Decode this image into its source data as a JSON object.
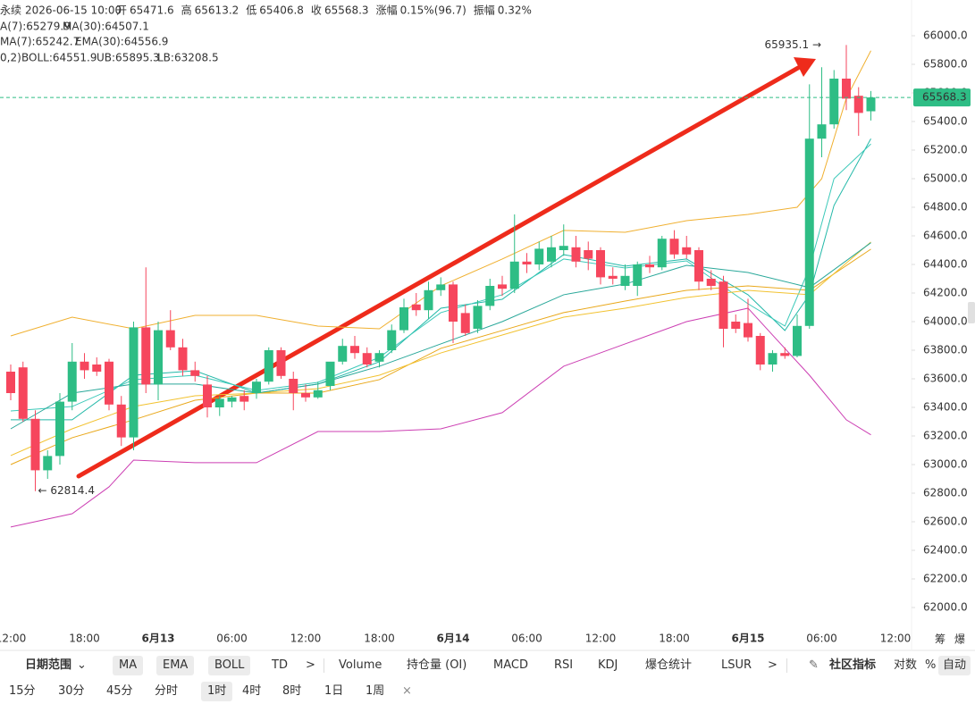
{
  "header": {
    "symbol": "永续",
    "time": "2026-06-15 10:00",
    "fields": [
      {
        "label": "开",
        "value": "65471.6"
      },
      {
        "label": "高",
        "value": "65613.2"
      },
      {
        "label": "低",
        "value": "65406.8"
      },
      {
        "label": "收",
        "value": "65568.3"
      },
      {
        "label": "涨幅",
        "value": "0.15%(96.7)"
      },
      {
        "label": "振幅",
        "value": "0.32%"
      }
    ]
  },
  "boll_params": "0,2)",
  "chart_data": {
    "type": "candlestick",
    "ylim": [
      61875,
      66250
    ],
    "yticks": [
      {
        "value": 62000,
        "label": "62000.0"
      },
      {
        "value": 62200,
        "label": "62200.0"
      },
      {
        "value": 62400,
        "label": "62400.0"
      },
      {
        "value": 62600,
        "label": "62600.0"
      },
      {
        "value": 62800,
        "label": "62800.0"
      },
      {
        "value": 63000,
        "label": "63000.0"
      },
      {
        "value": 63200,
        "label": "63200.0"
      },
      {
        "value": 63400,
        "label": "63400.0"
      },
      {
        "value": 63600,
        "label": "63600.0"
      },
      {
        "value": 63800,
        "label": "63800.0"
      },
      {
        "value": 64000,
        "label": "64000.0"
      },
      {
        "value": 64200,
        "label": "64200.0"
      },
      {
        "value": 64400,
        "label": "64400.0"
      },
      {
        "value": 64600,
        "label": "64600.0"
      },
      {
        "value": 64800,
        "label": "64800.0"
      },
      {
        "value": 65000,
        "label": "65000.0"
      },
      {
        "value": 65200,
        "label": "65200.0"
      },
      {
        "value": 65400,
        "label": "65400.0"
      },
      {
        "value": 65600,
        "label": "65600.0"
      },
      {
        "value": 65800,
        "label": "65800.0"
      },
      {
        "value": 66000,
        "label": "66000.0"
      }
    ],
    "xlabels": [
      {
        "index": 0,
        "label": "12:00"
      },
      {
        "index": 6,
        "label": "18:00"
      },
      {
        "index": 12,
        "label": "6月13"
      },
      {
        "index": 18,
        "label": "06:00"
      },
      {
        "index": 24,
        "label": "12:00"
      },
      {
        "index": 30,
        "label": "18:00"
      },
      {
        "index": 36,
        "label": "6月14"
      },
      {
        "index": 42,
        "label": "06:00"
      },
      {
        "index": 48,
        "label": "12:00"
      },
      {
        "index": 54,
        "label": "18:00"
      },
      {
        "index": 60,
        "label": "6月15"
      },
      {
        "index": 66,
        "label": "06:00"
      },
      {
        "index": 72,
        "label": "12:00"
      }
    ],
    "up_color": "#2ebd85",
    "down_color": "#f6465d",
    "open": [
      63650,
      63680,
      63320,
      62960,
      63060,
      63440,
      63720,
      63700,
      63720,
      63420,
      63190,
      63960,
      63560,
      63940,
      63820,
      63660,
      63560,
      63400,
      63440,
      63480,
      63500,
      63580,
      63800,
      63600,
      63500,
      63470,
      63550,
      63720,
      63830,
      63780,
      63720,
      63800,
      63940,
      64120,
      64080,
      64220,
      64260,
      64060,
      63950,
      64110,
      64260,
      64230,
      64420,
      64400,
      64420,
      64500,
      64520,
      64500,
      64500,
      64320,
      64250,
      64250,
      64400,
      64380,
      64580,
      64520,
      64500,
      64300,
      64280,
      64000,
      63990,
      63900,
      63700,
      63780,
      63760,
      63970,
      65280,
      65380,
      65700,
      65580,
      65471.6
    ],
    "high": [
      63700,
      63720,
      63380,
      63100,
      63500,
      63850,
      63780,
      63750,
      63740,
      63480,
      64000,
      64380,
      64000,
      64080,
      63880,
      63720,
      63620,
      63480,
      63480,
      63520,
      63600,
      63820,
      63820,
      63650,
      63560,
      63580,
      63700,
      63880,
      63900,
      63820,
      63800,
      63980,
      64160,
      64200,
      64280,
      64310,
      64280,
      64120,
      64150,
      64300,
      64320,
      64750,
      64480,
      64560,
      64600,
      64680,
      64600,
      64560,
      64520,
      64380,
      64400,
      64420,
      64460,
      64600,
      64640,
      64600,
      64520,
      64360,
      64320,
      64050,
      64160,
      63920,
      63800,
      63820,
      64050,
      65660,
      65780,
      65760,
      65935.1,
      65640,
      65613.2
    ],
    "low": [
      63450,
      63300,
      62814.4,
      62900,
      63000,
      63380,
      63600,
      63620,
      63380,
      63130,
      63100,
      63500,
      63450,
      63800,
      63620,
      63580,
      63330,
      63340,
      63400,
      63380,
      63460,
      63560,
      63600,
      63380,
      63440,
      63460,
      63520,
      63700,
      63740,
      63680,
      63680,
      63780,
      63920,
      64040,
      64020,
      64180,
      63850,
      63900,
      63920,
      64080,
      64180,
      64200,
      64340,
      64360,
      64380,
      64460,
      64380,
      64360,
      64260,
      64260,
      64220,
      64180,
      64340,
      64360,
      64440,
      64440,
      64220,
      64220,
      63820,
      63920,
      63860,
      63660,
      63650,
      63740,
      63750,
      63950,
      65150,
      65350,
      65480,
      65300,
      65406.8
    ],
    "close": [
      63500,
      63320,
      62960,
      63060,
      63440,
      63720,
      63660,
      63650,
      63420,
      63190,
      63960,
      63560,
      63940,
      63820,
      63660,
      63620,
      63400,
      63460,
      63470,
      63440,
      63580,
      63800,
      63620,
      63500,
      63470,
      63520,
      63720,
      63830,
      63780,
      63700,
      63780,
      63940,
      64100,
      64080,
      64220,
      64260,
      64000,
      63920,
      64110,
      64250,
      64230,
      64420,
      64400,
      64510,
      64520,
      64530,
      64420,
      64440,
      64310,
      64300,
      64320,
      64400,
      64380,
      64580,
      64470,
      64470,
      64280,
      64250,
      63950,
      63950,
      63890,
      63700,
      63780,
      63760,
      63970,
      65280,
      65380,
      65700,
      65560,
      65460,
      65568.3
    ],
    "current_price": {
      "value": 65568.3,
      "label": "65568.3"
    },
    "extremes": {
      "index": [
        68,
        2
      ],
      "values": [
        65935.1,
        62814.4
      ],
      "value_labels": [
        "65935.1 →",
        "← 62814.4"
      ]
    },
    "lines": [
      {
        "label": "A(7):65279.9",
        "color": "#22b8a8",
        "x": [
          0,
          5,
          10,
          15,
          20,
          25,
          30,
          35,
          40,
          45,
          50,
          55,
          60,
          63,
          65,
          67,
          70
        ],
        "values": [
          63313,
          63313,
          63625,
          63656,
          63500,
          63563,
          63719,
          64094,
          64156,
          64469,
          64388,
          64438,
          64188,
          63938,
          64188,
          64813,
          65279.9
        ]
      },
      {
        "label": "MA(30):64507.1",
        "color": "#e9a81b",
        "x": [
          0,
          5,
          10,
          15,
          20,
          25,
          30,
          35,
          40,
          45,
          50,
          55,
          60,
          65,
          70
        ],
        "values": [
          63000,
          63188,
          63313,
          63450,
          63500,
          63500,
          63594,
          63813,
          63938,
          64063,
          64144,
          64219,
          64250,
          64219,
          64507.1
        ]
      },
      {
        "label": "MA(7):65242.7",
        "color": "#3cc9b9",
        "x": [
          0,
          5,
          10,
          15,
          20,
          25,
          30,
          35,
          40,
          45,
          50,
          55,
          60,
          63,
          65,
          67,
          70
        ],
        "values": [
          63375,
          63406,
          63594,
          63625,
          63519,
          63575,
          63750,
          64063,
          64188,
          64438,
          64375,
          64425,
          64125,
          63969,
          64375,
          65000,
          65242.7
        ]
      },
      {
        "label": "EMA(30):64556.9",
        "color": "#f2c230",
        "x": [
          0,
          5,
          10,
          15,
          20,
          25,
          30,
          35,
          40,
          45,
          50,
          55,
          60,
          65,
          70
        ],
        "values": [
          63063,
          63250,
          63406,
          63481,
          63500,
          63531,
          63625,
          63781,
          63906,
          64031,
          64094,
          64169,
          64219,
          64188,
          64556.9
        ]
      },
      {
        "label": "BOLL:64551.9",
        "color": "#2aa89a",
        "x": [
          0,
          5,
          10,
          15,
          20,
          25,
          30,
          35,
          40,
          45,
          50,
          55,
          60,
          65,
          70
        ],
        "values": [
          63250,
          63500,
          63563,
          63563,
          63500,
          63563,
          63688,
          63844,
          64000,
          64188,
          64263,
          64394,
          64344,
          64238,
          64551.9
        ]
      },
      {
        "label": "UB:65895.3",
        "color": "#f0b030",
        "x": [
          0,
          5,
          10,
          15,
          20,
          25,
          30,
          35,
          40,
          45,
          50,
          55,
          60,
          64,
          66,
          68,
          70
        ],
        "values": [
          63900,
          64031,
          63950,
          64044,
          64044,
          63969,
          63950,
          64250,
          64438,
          64638,
          64625,
          64706,
          64750,
          64800,
          65000,
          65563,
          65895.3
        ]
      },
      {
        "label": "LB:63208.5",
        "color": "#cc3fb3",
        "x": [
          0,
          5,
          8,
          10,
          15,
          20,
          25,
          30,
          35,
          40,
          45,
          50,
          55,
          60,
          62,
          65,
          68,
          70
        ],
        "values": [
          62563,
          62656,
          62844,
          63031,
          63013,
          63013,
          63231,
          63231,
          63250,
          63363,
          63688,
          63844,
          64000,
          64094,
          63906,
          63625,
          63313,
          63208.5
        ]
      }
    ]
  },
  "axis_corner": [
    "筹",
    "爆"
  ],
  "toolbar": {
    "date_range": "日期范围",
    "main_indicators": [
      "MA",
      "EMA",
      "BOLL",
      "TD"
    ],
    "more1": ">",
    "sub_indicators": [
      "Volume",
      "持仓量 (OI)",
      "MACD",
      "RSI",
      "KDJ",
      "爆仓统计",
      "LSUR"
    ],
    "more2": ">",
    "community": "社区指标",
    "options": [
      "对数",
      "%",
      "自动"
    ]
  },
  "intervals": {
    "items": [
      "15分",
      "30分",
      "45分",
      "分时",
      "1时",
      "4时",
      "8时",
      "1日",
      "1周"
    ],
    "selected": "1时",
    "close": "×"
  }
}
